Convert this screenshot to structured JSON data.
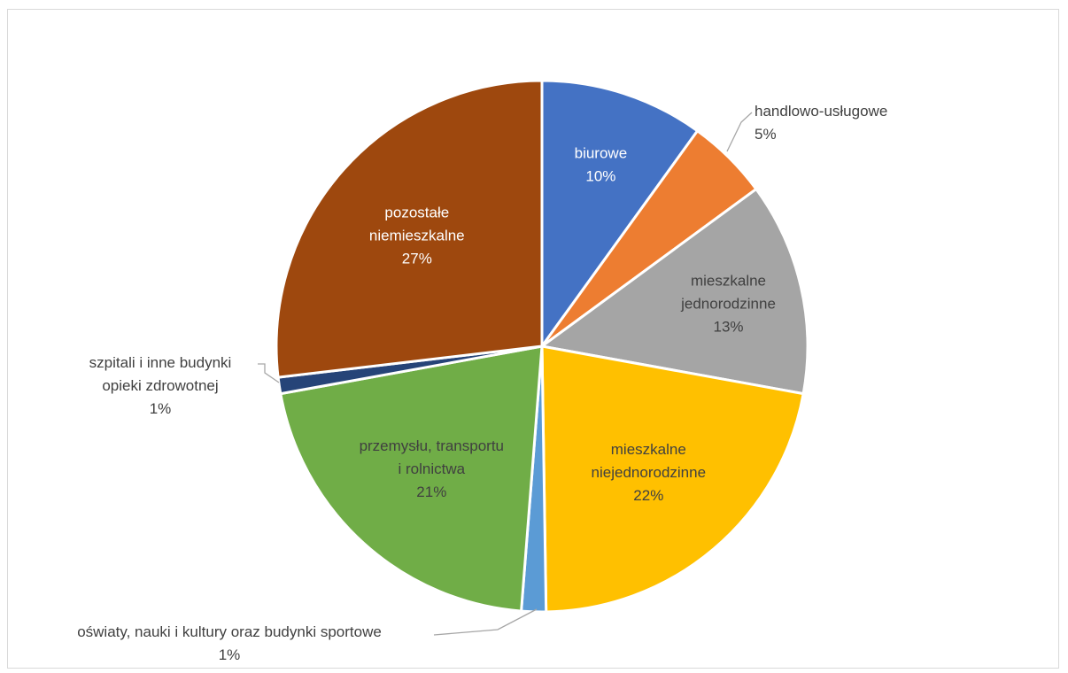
{
  "chart_data": {
    "type": "pie",
    "title": "",
    "slices": [
      {
        "name": "biurowe",
        "lines": [
          "biurowe"
        ],
        "percent_label": "10%",
        "value": 10,
        "color": "#4472C4",
        "label_style": "inside-light"
      },
      {
        "name": "handlowo-usługowe",
        "lines": [
          "handlowo-usługowe"
        ],
        "percent_label": "5%",
        "value": 5,
        "color": "#ED7D31",
        "label_style": "outside"
      },
      {
        "name": "mieszkalne jednorodzinne",
        "lines": [
          "mieszkalne",
          "jednorodzinne"
        ],
        "percent_label": "13%",
        "value": 13,
        "color": "#A5A5A5",
        "label_style": "inside-dark"
      },
      {
        "name": "mieszkalne niejednorodzinne",
        "lines": [
          "mieszkalne",
          "niejednorodzinne"
        ],
        "percent_label": "22%",
        "value": 22,
        "color": "#FFC000",
        "label_style": "inside-dark"
      },
      {
        "name": "oświaty, nauki i kultury oraz budynki sportowe",
        "lines": [
          "oświaty, nauki i kultury oraz budynki sportowe"
        ],
        "percent_label": "1%",
        "value": 1.5,
        "color": "#5B9BD5",
        "label_style": "outside"
      },
      {
        "name": "przemysłu, transportu i rolnictwa",
        "lines": [
          "przemysłu, transportu",
          "i rolnictwa"
        ],
        "percent_label": "21%",
        "value": 21,
        "color": "#70AD47",
        "label_style": "inside-dark"
      },
      {
        "name": "szpitali i inne budynki opieki zdrowotnej",
        "lines": [
          "szpitali i inne budynki",
          "opieki zdrowotnej"
        ],
        "percent_label": "1%",
        "value": 1,
        "color": "#264478",
        "label_style": "outside"
      },
      {
        "name": "pozostałe niemieszkalne",
        "lines": [
          "pozostałe",
          "niemieszkalne"
        ],
        "percent_label": "27%",
        "value": 27,
        "color": "#9E480E",
        "label_style": "inside-light"
      }
    ],
    "legend": "none"
  }
}
